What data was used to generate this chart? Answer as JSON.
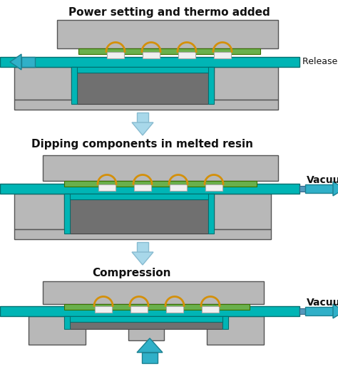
{
  "bg_color": "#ffffff",
  "gray": "#b8b8b8",
  "teal": "#00b5b5",
  "green": "#6ab04c",
  "dark_cavity": "#707070",
  "orange": "#d4900a",
  "white_chip": "#f0f0f0",
  "arrow_fill": "#a8d8ea",
  "arrow_teal": "#30b0c8",
  "label1": "Power setting and thermo added",
  "label2": "Dipping components in melted resin",
  "label3": "Compression",
  "release_film": "Release film",
  "vacuum": "Vacuum",
  "fig_width": 4.74,
  "fig_height": 5.14,
  "dpi": 100
}
